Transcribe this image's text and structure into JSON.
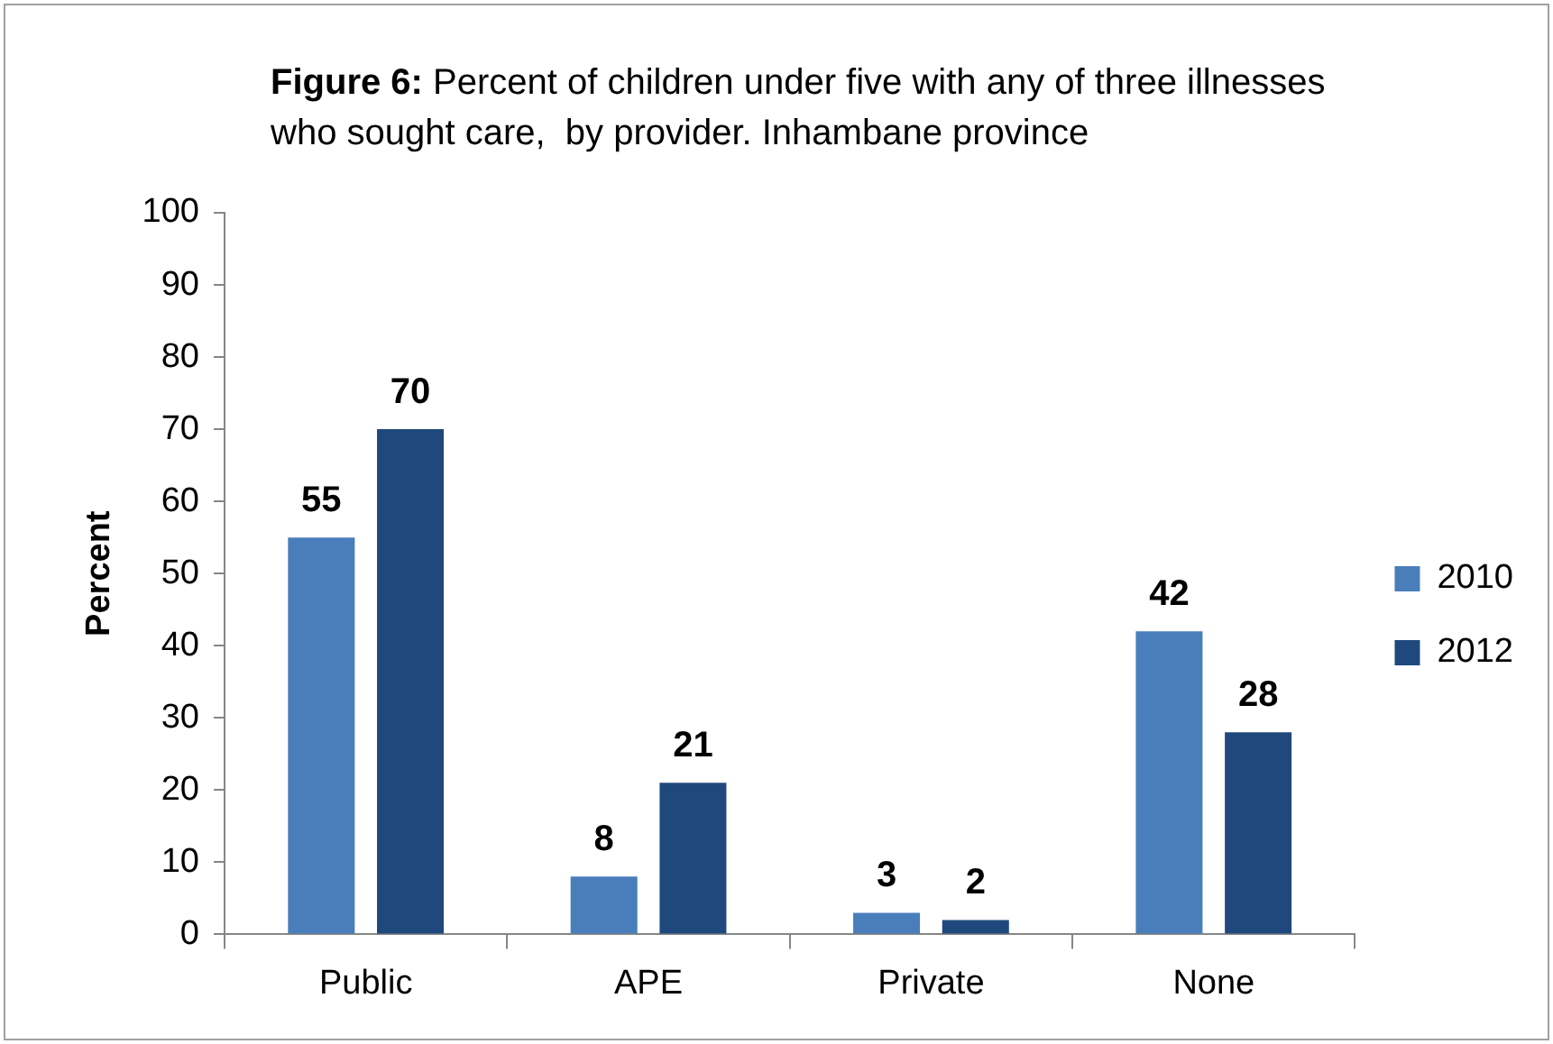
{
  "chart_data": {
    "type": "bar",
    "title": "Figure 6: Percent of children under five with any of three illnesses who sought care,  by provider. Inhambane province",
    "ylabel": "Percent",
    "categories": [
      "Public",
      "APE",
      "Private",
      "None"
    ],
    "series": [
      {
        "name": "2010",
        "color": "#4a7ebb",
        "values": [
          55,
          8,
          3,
          42
        ]
      },
      {
        "name": "2012",
        "color": "#1f497d",
        "values": [
          70,
          21,
          2,
          28
        ]
      }
    ],
    "ylim": [
      0,
      100
    ],
    "yticks": [
      0,
      10,
      20,
      30,
      40,
      50,
      60,
      70,
      80,
      90,
      100
    ],
    "grid": false,
    "legend": "right",
    "data_labels": true
  }
}
